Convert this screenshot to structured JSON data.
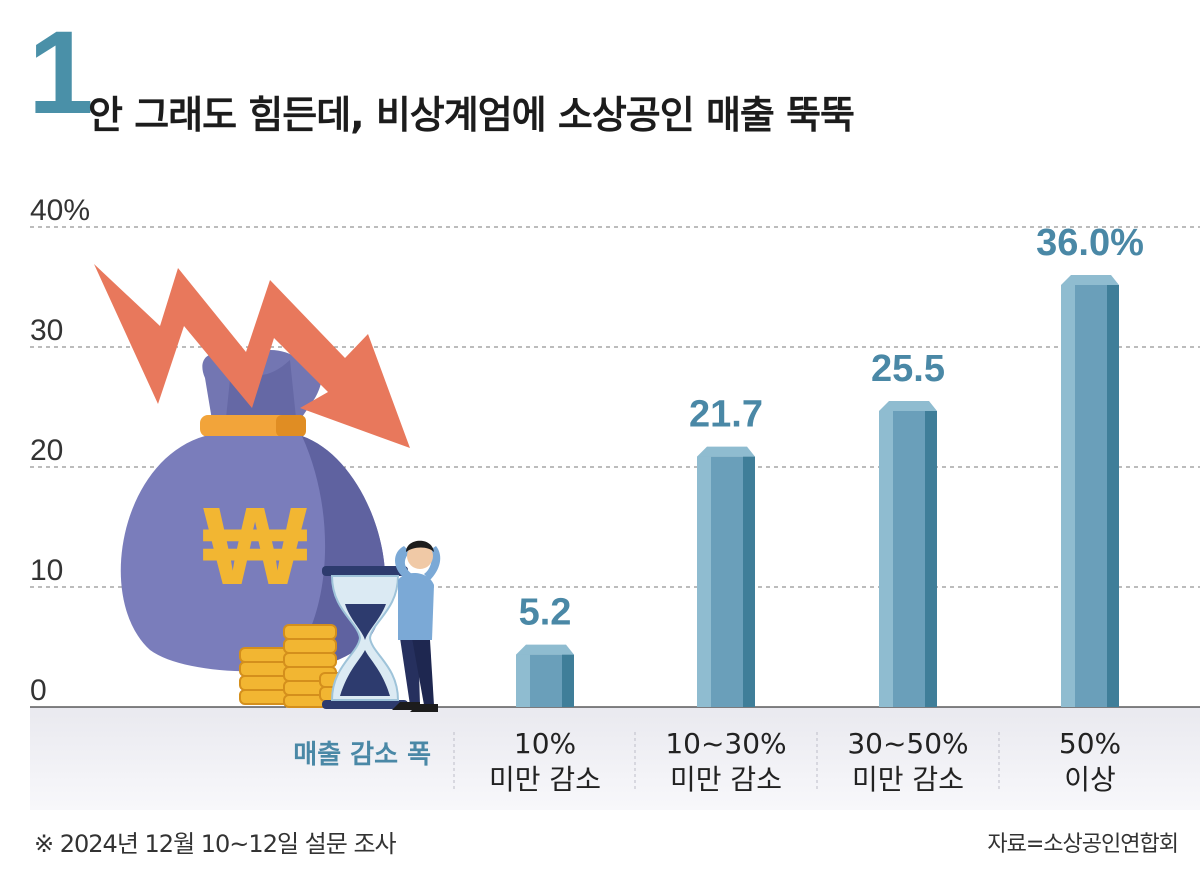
{
  "headline": {
    "number": "1",
    "title": "안 그래도 힘든데, 비상계엄에 소상공인 매출 뚝뚝"
  },
  "chart_data": {
    "type": "bar",
    "categories": [
      "10%\n미만 감소",
      "10~30%\n미만 감소",
      "30~50%\n미만 감소",
      "50%\n이상"
    ],
    "values": [
      5.2,
      21.7,
      25.5,
      36.0
    ],
    "value_labels": [
      "5.2",
      "21.7",
      "25.5",
      "36.0%"
    ],
    "ylim": [
      0,
      40
    ],
    "yticks": [
      0,
      10,
      20,
      30,
      40
    ],
    "ytick_labels": [
      "0",
      "10",
      "20",
      "30",
      "40%"
    ],
    "xlabel": "매출 감소 폭",
    "grid": true,
    "colors": {
      "bar": "#6a9fba",
      "bar_light": "#8fbcd0",
      "bar_dark": "#3f7e99",
      "value_label": "#4a88a6",
      "axis_label": "#4a88a6"
    }
  },
  "illustration": {
    "currency_symbol": "₩"
  },
  "footnote": "※ 2024년 12월 10~12일 설문 조사",
  "source": "자료=소상공인연합회"
}
